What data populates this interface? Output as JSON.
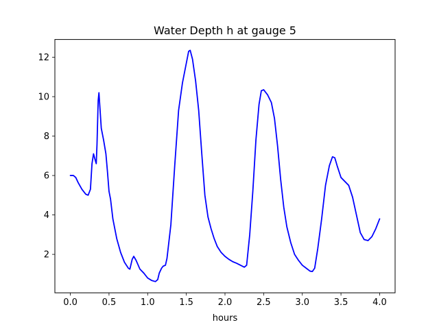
{
  "chart_data": {
    "type": "line",
    "title": "Water Depth h at gauge 5",
    "xlabel": "hours",
    "ylabel": "",
    "xlim": [
      -0.2,
      4.2
    ],
    "ylim": [
      0.05,
      12.9
    ],
    "xticks": [
      0.0,
      0.5,
      1.0,
      1.5,
      2.0,
      2.5,
      3.0,
      3.5,
      4.0
    ],
    "xtick_labels": [
      "0.0",
      "0.5",
      "1.0",
      "1.5",
      "2.0",
      "2.5",
      "3.0",
      "3.5",
      "4.0"
    ],
    "yticks": [
      2,
      4,
      6,
      8,
      10,
      12
    ],
    "ytick_labels": [
      "2",
      "4",
      "6",
      "8",
      "10",
      "12"
    ],
    "grid": false,
    "series": [
      {
        "color": "#0000ff",
        "points": [
          [
            0.0,
            6.0
          ],
          [
            0.04,
            6.0
          ],
          [
            0.07,
            5.9
          ],
          [
            0.1,
            5.65
          ],
          [
            0.15,
            5.3
          ],
          [
            0.2,
            5.05
          ],
          [
            0.23,
            5.0
          ],
          [
            0.26,
            5.3
          ],
          [
            0.28,
            6.6
          ],
          [
            0.3,
            7.1
          ],
          [
            0.32,
            6.8
          ],
          [
            0.335,
            6.6
          ],
          [
            0.345,
            7.6
          ],
          [
            0.36,
            9.8
          ],
          [
            0.37,
            10.2
          ],
          [
            0.38,
            9.6
          ],
          [
            0.4,
            8.4
          ],
          [
            0.43,
            7.8
          ],
          [
            0.46,
            7.1
          ],
          [
            0.48,
            6.2
          ],
          [
            0.5,
            5.2
          ],
          [
            0.52,
            4.8
          ],
          [
            0.55,
            3.8
          ],
          [
            0.6,
            2.8
          ],
          [
            0.65,
            2.1
          ],
          [
            0.7,
            1.6
          ],
          [
            0.75,
            1.3
          ],
          [
            0.77,
            1.25
          ],
          [
            0.8,
            1.75
          ],
          [
            0.82,
            1.9
          ],
          [
            0.85,
            1.7
          ],
          [
            0.9,
            1.25
          ],
          [
            0.95,
            1.05
          ],
          [
            1.0,
            0.8
          ],
          [
            1.05,
            0.68
          ],
          [
            1.1,
            0.62
          ],
          [
            1.13,
            0.72
          ],
          [
            1.15,
            1.05
          ],
          [
            1.18,
            1.3
          ],
          [
            1.2,
            1.4
          ],
          [
            1.23,
            1.45
          ],
          [
            1.25,
            1.8
          ],
          [
            1.3,
            3.5
          ],
          [
            1.35,
            6.5
          ],
          [
            1.4,
            9.3
          ],
          [
            1.45,
            10.7
          ],
          [
            1.5,
            11.7
          ],
          [
            1.53,
            12.3
          ],
          [
            1.55,
            12.35
          ],
          [
            1.58,
            11.9
          ],
          [
            1.62,
            10.8
          ],
          [
            1.66,
            9.3
          ],
          [
            1.7,
            7.1
          ],
          [
            1.74,
            5.0
          ],
          [
            1.78,
            3.9
          ],
          [
            1.82,
            3.3
          ],
          [
            1.86,
            2.8
          ],
          [
            1.9,
            2.4
          ],
          [
            1.95,
            2.1
          ],
          [
            2.0,
            1.9
          ],
          [
            2.05,
            1.75
          ],
          [
            2.1,
            1.63
          ],
          [
            2.15,
            1.55
          ],
          [
            2.2,
            1.45
          ],
          [
            2.25,
            1.35
          ],
          [
            2.28,
            1.45
          ],
          [
            2.32,
            3.0
          ],
          [
            2.36,
            5.2
          ],
          [
            2.4,
            7.8
          ],
          [
            2.44,
            9.6
          ],
          [
            2.47,
            10.3
          ],
          [
            2.5,
            10.35
          ],
          [
            2.55,
            10.1
          ],
          [
            2.6,
            9.7
          ],
          [
            2.64,
            8.9
          ],
          [
            2.68,
            7.5
          ],
          [
            2.72,
            5.8
          ],
          [
            2.76,
            4.4
          ],
          [
            2.8,
            3.4
          ],
          [
            2.85,
            2.6
          ],
          [
            2.9,
            2.0
          ],
          [
            2.95,
            1.7
          ],
          [
            3.0,
            1.45
          ],
          [
            3.05,
            1.3
          ],
          [
            3.1,
            1.15
          ],
          [
            3.13,
            1.13
          ],
          [
            3.16,
            1.3
          ],
          [
            3.2,
            2.3
          ],
          [
            3.25,
            3.8
          ],
          [
            3.3,
            5.5
          ],
          [
            3.35,
            6.5
          ],
          [
            3.39,
            6.95
          ],
          [
            3.42,
            6.9
          ],
          [
            3.45,
            6.5
          ],
          [
            3.5,
            5.9
          ],
          [
            3.55,
            5.7
          ],
          [
            3.6,
            5.5
          ],
          [
            3.65,
            4.9
          ],
          [
            3.7,
            4.0
          ],
          [
            3.75,
            3.1
          ],
          [
            3.8,
            2.75
          ],
          [
            3.85,
            2.7
          ],
          [
            3.9,
            2.9
          ],
          [
            3.95,
            3.3
          ],
          [
            4.0,
            3.8
          ]
        ]
      }
    ]
  }
}
